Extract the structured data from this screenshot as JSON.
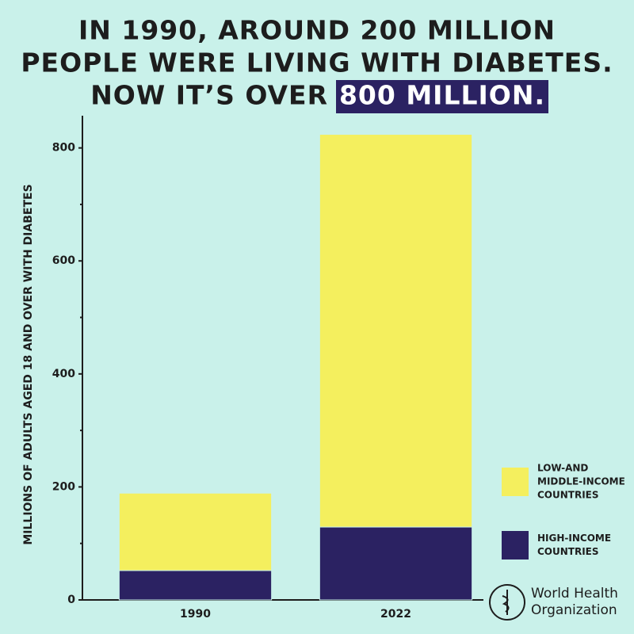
{
  "chart_data": {
    "type": "stacked_bar",
    "title_lines": [
      "IN 1990, AROUND 200 MILLION",
      "PEOPLE WERE LIVING WITH DIABETES.",
      "NOW IT’S OVER"
    ],
    "title_highlight": "800 MILLION.",
    "y_label": "MILLIONS OF ADULTS AGED 18 AND OVER WITH DIABETES",
    "categories": [
      "1990",
      "2022"
    ],
    "series": [
      {
        "name": [
          "HIGH-INCOME",
          "COUNTRIES"
        ],
        "color": "#2b2262",
        "values": [
          52,
          129
        ]
      },
      {
        "name": [
          "LOW-AND",
          "MIDDLE-INCOME",
          "COUNTRIES"
        ],
        "color": "#f4ef5e",
        "values": [
          137,
          695
        ]
      }
    ],
    "ylim": [
      0,
      850
    ],
    "yticks": [
      0,
      200,
      400,
      600,
      800
    ],
    "minor_yticks": [
      100,
      300,
      500,
      700
    ],
    "logo_text": [
      "World Health",
      "Organization"
    ]
  }
}
